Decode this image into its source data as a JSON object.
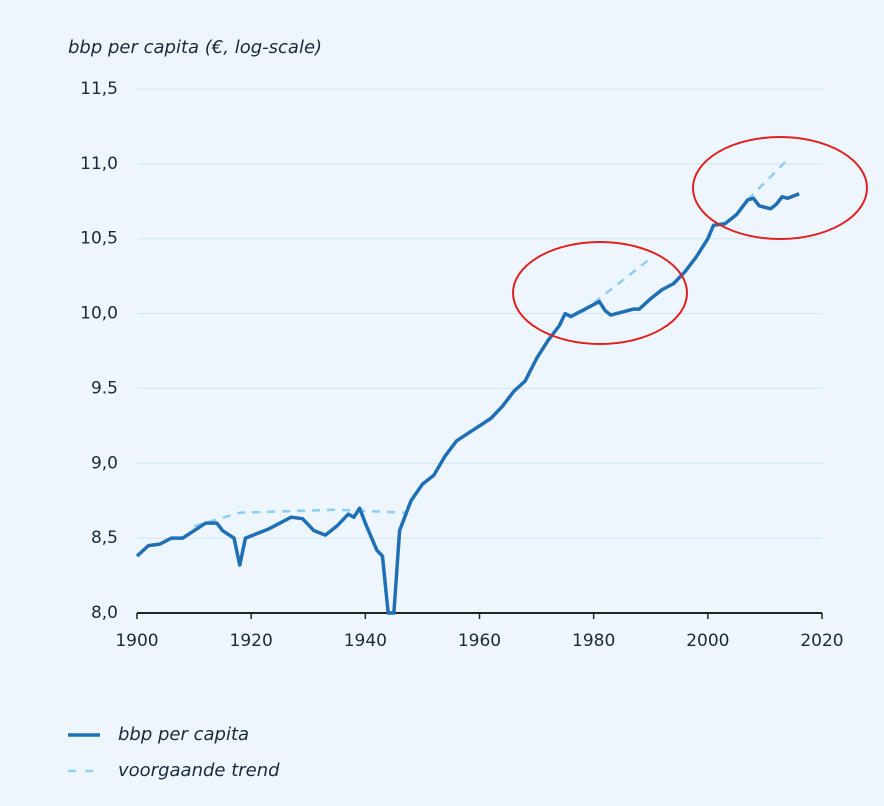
{
  "chart_data": {
    "type": "line",
    "title": "bbp per capita (€, log-scale)",
    "xlim": [
      1900,
      2020
    ],
    "xticks": [
      1900,
      1920,
      1940,
      1960,
      1980,
      2000,
      2020
    ],
    "ylim": [
      8.0,
      11.5
    ],
    "yticks": [
      {
        "value": 8.0,
        "label": "8,0"
      },
      {
        "value": 8.5,
        "label": "8,5"
      },
      {
        "value": 9.0,
        "label": "9,0"
      },
      {
        "value": 9.5,
        "label": "9.5"
      },
      {
        "value": 10.0,
        "label": "10,0"
      },
      {
        "value": 10.5,
        "label": "10,5"
      },
      {
        "value": 11.0,
        "label": "11,0"
      },
      {
        "value": 11.5,
        "label": "11,5"
      }
    ],
    "grid": true,
    "legend": "bottom-left",
    "series": [
      {
        "name": "bbp per capita",
        "color": "#1f6fb5",
        "dash": false,
        "x": [
          1900,
          1902,
          1904,
          1906,
          1908,
          1910,
          1912,
          1914,
          1915,
          1917,
          1918,
          1919,
          1921,
          1923,
          1925,
          1927,
          1929,
          1931,
          1933,
          1935,
          1937,
          1938,
          1939,
          1940,
          1942,
          1943,
          1944,
          1945,
          1946,
          1948,
          1950,
          1952,
          1954,
          1956,
          1958,
          1960,
          1962,
          1964,
          1966,
          1968,
          1970,
          1972,
          1974,
          1975,
          1976,
          1978,
          1980,
          1981,
          1982,
          1983,
          1985,
          1987,
          1988,
          1990,
          1992,
          1994,
          1996,
          1998,
          2000,
          2001,
          2003,
          2005,
          2007,
          2008,
          2009,
          2011,
          2012,
          2013,
          2014,
          2016
        ],
        "values": [
          8.38,
          8.45,
          8.46,
          8.5,
          8.5,
          8.55,
          8.6,
          8.6,
          8.55,
          8.5,
          8.32,
          8.5,
          8.53,
          8.56,
          8.6,
          8.64,
          8.63,
          8.55,
          8.52,
          8.58,
          8.66,
          8.64,
          8.7,
          8.6,
          8.42,
          8.38,
          8.0,
          8.0,
          8.55,
          8.75,
          8.86,
          8.92,
          9.05,
          9.15,
          9.2,
          9.25,
          9.3,
          9.38,
          9.48,
          9.55,
          9.7,
          9.82,
          9.92,
          10.0,
          9.98,
          10.02,
          10.06,
          10.08,
          10.02,
          9.99,
          10.01,
          10.03,
          10.03,
          10.1,
          10.16,
          10.2,
          10.28,
          10.38,
          10.5,
          10.59,
          10.6,
          10.66,
          10.76,
          10.77,
          10.72,
          10.7,
          10.73,
          10.78,
          10.77,
          10.8
        ]
      },
      {
        "name": "voorgaande trend",
        "color": "#8ccdf2",
        "dash": true,
        "x": [
          1910,
          1918,
          1935,
          1947,
          1948,
          1978,
          1990,
          1991,
          2007,
          2014
        ],
        "values": [
          8.58,
          8.67,
          8.69,
          8.67,
          null,
          10.01,
          10.37,
          null,
          10.76,
          11.03
        ]
      }
    ]
  }
}
